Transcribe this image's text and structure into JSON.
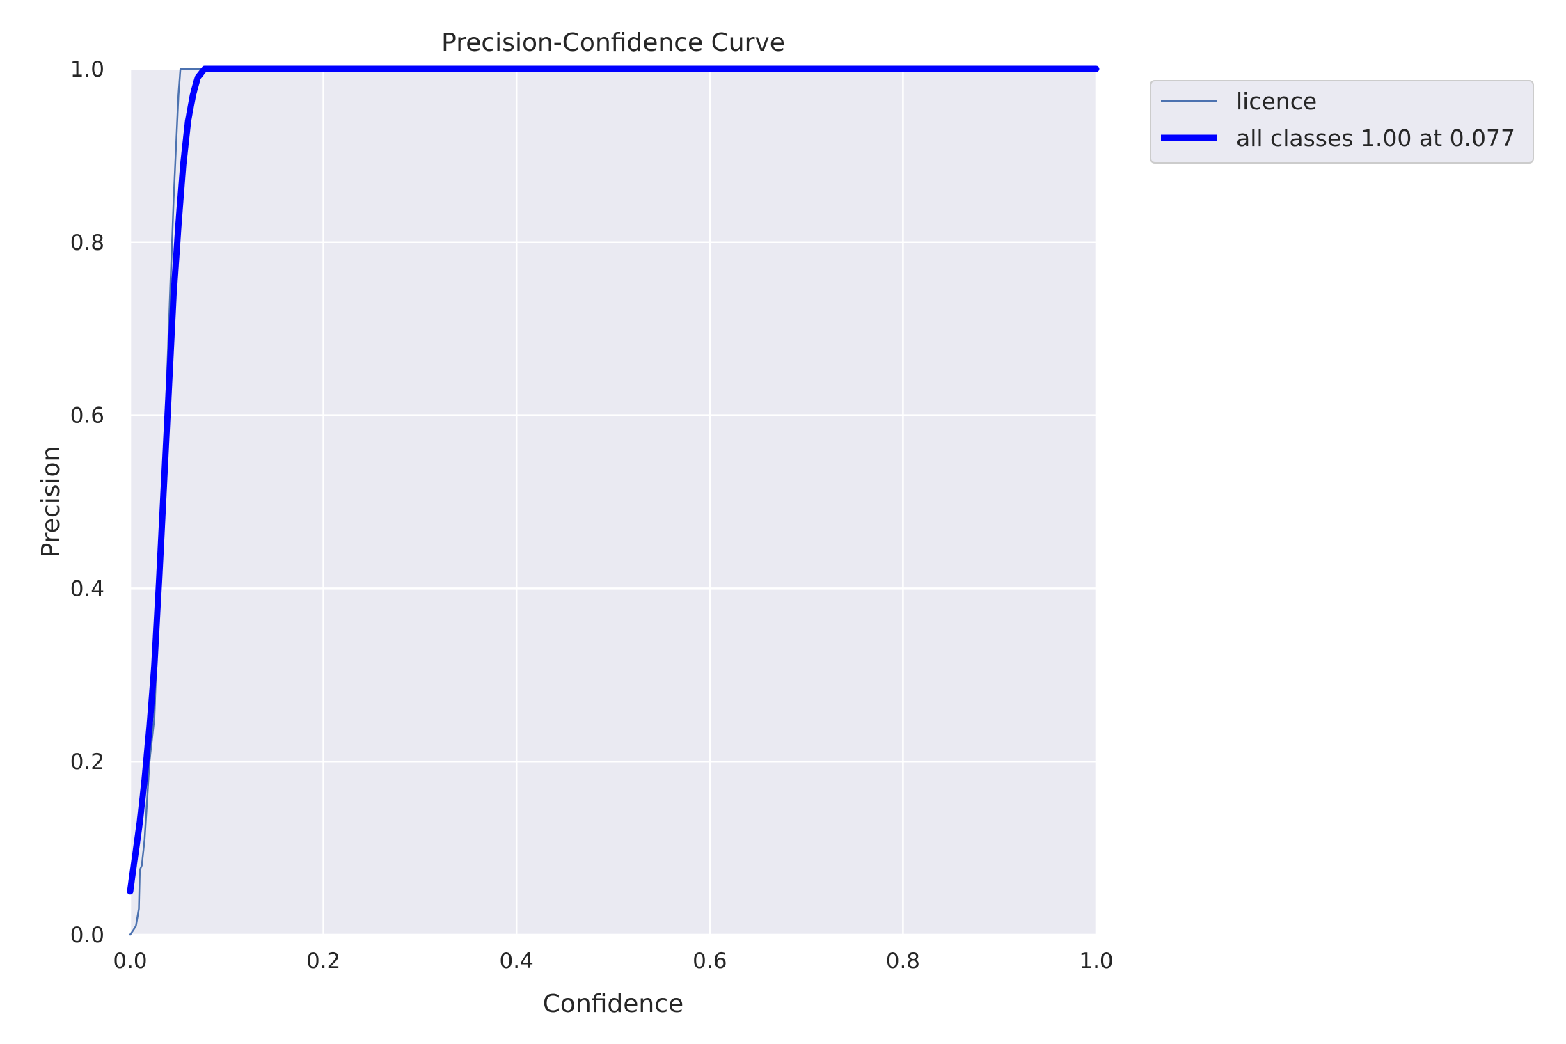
{
  "chart_data": {
    "type": "line",
    "title": "Precision-Confidence Curve",
    "xlabel": "Confidence",
    "ylabel": "Precision",
    "xlim": [
      0,
      1
    ],
    "ylim": [
      0,
      1
    ],
    "xticks": [
      "0.0",
      "0.2",
      "0.4",
      "0.6",
      "0.8",
      "1.0"
    ],
    "yticks": [
      "0.0",
      "0.2",
      "0.4",
      "0.6",
      "0.8",
      "1.0"
    ],
    "grid": true,
    "background_color": "#eaeaf2",
    "grid_color": "#ffffff",
    "legend_position": "outside-top-right",
    "series": [
      {
        "name": "licence",
        "color": "#4c72b0",
        "style": "thin",
        "x": [
          0.0,
          0.003,
          0.006,
          0.009,
          0.01,
          0.012,
          0.015,
          0.02,
          0.025,
          0.03,
          0.035,
          0.04,
          0.045,
          0.05,
          0.052,
          1.0
        ],
        "y": [
          0.0,
          0.005,
          0.01,
          0.03,
          0.075,
          0.08,
          0.11,
          0.2,
          0.25,
          0.4,
          0.55,
          0.7,
          0.85,
          0.97,
          1.0,
          1.0
        ]
      },
      {
        "name": "all classes 1.00 at 0.077",
        "color": "#0000ff",
        "style": "thick",
        "x": [
          0.0,
          0.005,
          0.01,
          0.015,
          0.02,
          0.025,
          0.03,
          0.035,
          0.04,
          0.045,
          0.05,
          0.055,
          0.06,
          0.065,
          0.07,
          0.077,
          1.0
        ],
        "y": [
          0.05,
          0.09,
          0.13,
          0.18,
          0.24,
          0.31,
          0.41,
          0.52,
          0.63,
          0.74,
          0.82,
          0.89,
          0.94,
          0.97,
          0.99,
          1.0,
          1.0
        ]
      }
    ]
  }
}
